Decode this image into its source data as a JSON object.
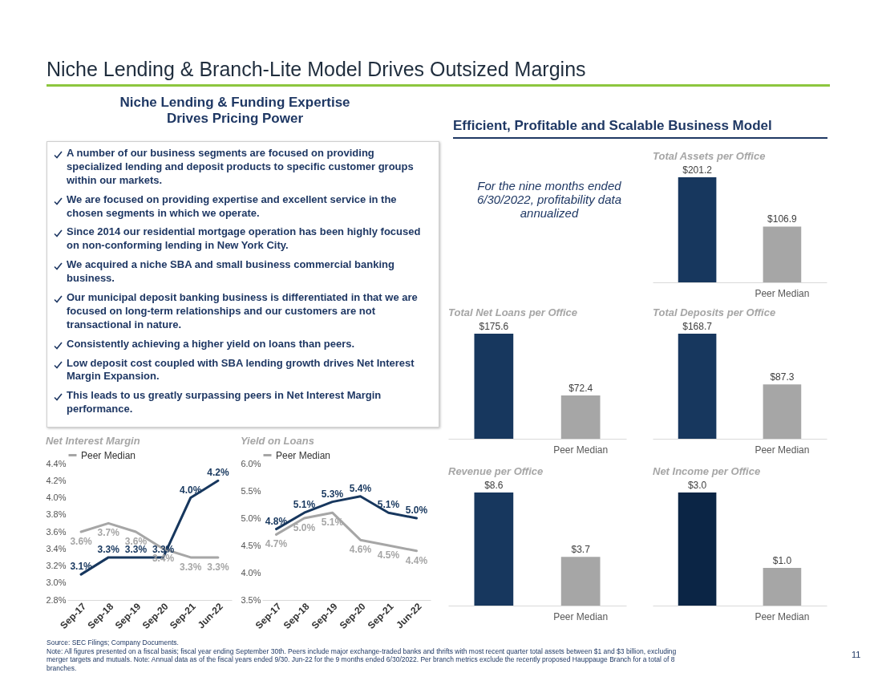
{
  "chart_data": [
    {
      "type": "other",
      "title": "Niche Lending & Branch-Lite Model Drives Outsized Margins",
      "annotations": [
        "Source: SEC Filings; Company Documents.",
        "Note: All figures presented on a fiscal basis; fiscal year ending September 30th. Peers include major exchange-traded banks and thrifts with most recent quarter total assets between $1 and $3 billion, excluding merger targets and mutuals. Note: Annual data as of the fiscal years ended 9/30. Jun-22 for the 9 months ended 6/30/2022. Per branch metrics exclude the recently proposed Hauppauge Branch for a total of 8 branches.",
        "11"
      ]
    },
    {
      "type": "other",
      "title": "Niche Lending & Funding Expertise Drives Pricing Power",
      "annotations": [
        "A number of our business segments are focused on providing specialized lending and deposit products to specific customer groups within our markets.",
        "We are focused on providing expertise and excellent service in the chosen segments in which we operate.",
        "Since 2014 our residential mortgage operation has been highly focused on non-conforming lending in New York City.",
        "We acquired a niche SBA and small business commercial banking business.",
        "Our municipal deposit banking business is differentiated in that we are focused on long-term relationships and our customers are not transactional in nature.",
        "Consistently achieving a higher yield on loans than peers.",
        "Low deposit cost coupled with SBA lending growth drives Net Interest Margin Expansion.",
        "This leads to us greatly surpassing peers in Net Interest Margin performance."
      ]
    },
    {
      "type": "other",
      "title": "Efficient, Profitable and Scalable Business Model",
      "annotations": [
        "For the nine months ended 6/30/2022, profitability data annualized"
      ]
    },
    {
      "type": "line",
      "title": "Net Interest Margin",
      "categories": [
        "Sep-17",
        "Sep-18",
        "Sep-19",
        "Sep-20",
        "Sep-21",
        "Jun-22"
      ],
      "legend": "top",
      "ylim": [
        2.8,
        4.4
      ],
      "yticks": [
        {
          "value": 2.8,
          "label": "2.8%"
        },
        {
          "value": 3.0,
          "label": "3.0%"
        },
        {
          "value": 3.2,
          "label": "3.2%"
        },
        {
          "value": 3.4,
          "label": "3.4%"
        },
        {
          "value": 3.6,
          "label": "3.6%"
        },
        {
          "value": 3.8,
          "label": "3.8%"
        },
        {
          "value": 4.0,
          "label": "4.0%"
        },
        {
          "value": 4.2,
          "label": "4.2%"
        },
        {
          "value": 4.4,
          "label": "4.4%"
        }
      ],
      "series": [
        {
          "color": "#17375e",
          "values": [
            3.1,
            3.3,
            3.3,
            3.3,
            4.0,
            4.2
          ],
          "value_labels": [
            "3.1%",
            "3.3%",
            "3.3%",
            "3.3%",
            "4.0%",
            "4.2%"
          ]
        },
        {
          "name": "Peer Median",
          "color": "#a6a6a6",
          "values": [
            3.6,
            3.7,
            3.6,
            3.4,
            3.3,
            3.3
          ],
          "value_labels": [
            "3.6%",
            "3.7%",
            "3.6%",
            "3.4%",
            "3.3%",
            "3.3%"
          ]
        }
      ]
    },
    {
      "type": "line",
      "title": "Yield on Loans",
      "categories": [
        "Sep-17",
        "Sep-18",
        "Sep-19",
        "Sep-20",
        "Sep-21",
        "Jun-22"
      ],
      "legend": "top",
      "ylim": [
        3.5,
        6.0
      ],
      "yticks": [
        {
          "value": 3.5,
          "label": "3.5%"
        },
        {
          "value": 4.0,
          "label": "4.0%"
        },
        {
          "value": 4.5,
          "label": "4.5%"
        },
        {
          "value": 5.0,
          "label": "5.0%"
        },
        {
          "value": 5.5,
          "label": "5.5%"
        },
        {
          "value": 6.0,
          "label": "6.0%"
        }
      ],
      "series": [
        {
          "color": "#17375e",
          "values": [
            4.8,
            5.1,
            5.3,
            5.4,
            5.1,
            5.0
          ],
          "value_labels": [
            "4.8%",
            "5.1%",
            "5.3%",
            "5.4%",
            "5.1%",
            "5.0%"
          ]
        },
        {
          "name": "Peer Median",
          "color": "#a6a6a6",
          "values": [
            4.7,
            5.0,
            5.1,
            4.6,
            4.5,
            4.4
          ],
          "value_labels": [
            "4.7%",
            "5.0%",
            "5.1%",
            "4.6%",
            "4.5%",
            "4.4%"
          ]
        }
      ]
    },
    {
      "type": "bar",
      "title": "Total Assets per Office",
      "categories": [
        null,
        "Peer Median"
      ],
      "values": [
        201.2,
        106.9
      ],
      "colors": [
        "#17375e",
        "#a6a6a6"
      ],
      "value_labels": [
        "$201.2",
        "$106.9"
      ]
    },
    {
      "type": "bar",
      "title": "Total Net Loans per Office",
      "categories": [
        null,
        "Peer Median"
      ],
      "values": [
        175.6,
        72.4
      ],
      "colors": [
        "#17375e",
        "#a6a6a6"
      ],
      "value_labels": [
        "$175.6",
        "$72.4"
      ]
    },
    {
      "type": "bar",
      "title": "Total Deposits per Office",
      "categories": [
        null,
        "Peer Median"
      ],
      "values": [
        168.7,
        87.3
      ],
      "colors": [
        "#17375e",
        "#a6a6a6"
      ],
      "value_labels": [
        "$168.7",
        "$87.3"
      ]
    },
    {
      "type": "bar",
      "title": "Revenue per Office",
      "categories": [
        null,
        "Peer Median"
      ],
      "values": [
        8.6,
        3.7
      ],
      "colors": [
        "#17375e",
        "#a6a6a6"
      ],
      "value_labels": [
        "$8.6",
        "$3.7"
      ]
    },
    {
      "type": "bar",
      "title": "Net Income per Office",
      "categories": [
        null,
        "Peer Median"
      ],
      "values": [
        3.0,
        1.0
      ],
      "colors": [
        "#0b2545",
        "#a6a6a6"
      ],
      "value_labels": [
        "$3.0",
        "$1.0"
      ]
    }
  ]
}
